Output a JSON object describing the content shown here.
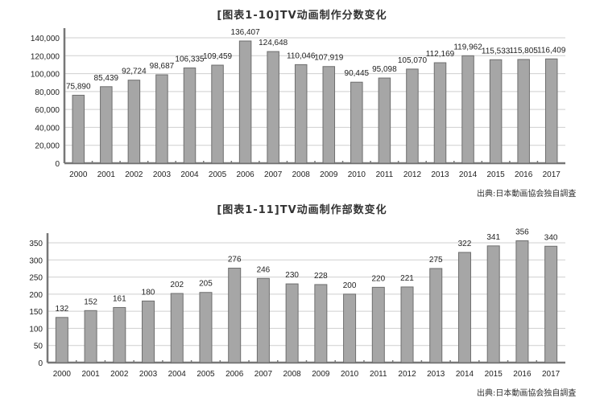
{
  "chart_data": [
    {
      "type": "bar",
      "title": "[图表1-10]TV动画制作分数变化",
      "source": "出典:日本動画協会独自調査",
      "xlabel": "",
      "ylabel": "",
      "categories": [
        "2000",
        "2001",
        "2002",
        "2003",
        "2004",
        "2005",
        "2006",
        "2007",
        "2008",
        "2009",
        "2010",
        "2011",
        "2012",
        "2013",
        "2014",
        "2015",
        "2016",
        "2017"
      ],
      "values": [
        75890,
        85439,
        92724,
        98687,
        106335,
        109459,
        136407,
        124648,
        110046,
        107919,
        90445,
        95098,
        105070,
        112169,
        119962,
        115533,
        115805,
        116409
      ],
      "value_labels": [
        "75,890",
        "85,439",
        "92,724",
        "98,687",
        "106,335",
        "109,459",
        "136,407",
        "124,648",
        "110,046",
        "107,919",
        "90,445",
        "95,098",
        "105,070",
        "112,169",
        "119,962",
        "115,533",
        "115,805",
        "116,409"
      ],
      "yticks": [
        "0",
        "20,000",
        "40,000",
        "60,000",
        "80,000",
        "100,000",
        "120,000",
        "140,000"
      ],
      "ylim": [
        0,
        140000
      ],
      "grid": true,
      "bar_color": "#a6a6a6"
    },
    {
      "type": "bar",
      "title": "[图表1-11]TV动画制作部数变化",
      "source": "出典:日本動画協会独自調査",
      "xlabel": "",
      "ylabel": "",
      "categories": [
        "2000",
        "2001",
        "2002",
        "2003",
        "2004",
        "2005",
        "2006",
        "2007",
        "2008",
        "2009",
        "2010",
        "2011",
        "2012",
        "2013",
        "2014",
        "2015",
        "2016",
        "2017"
      ],
      "values": [
        132,
        152,
        161,
        180,
        202,
        205,
        276,
        246,
        230,
        228,
        200,
        220,
        221,
        275,
        322,
        341,
        356,
        340
      ],
      "value_labels": [
        "132",
        "152",
        "161",
        "180",
        "202",
        "205",
        "276",
        "246",
        "230",
        "228",
        "200",
        "220",
        "221",
        "275",
        "322",
        "341",
        "356",
        "340"
      ],
      "yticks": [
        "0",
        "50",
        "100",
        "150",
        "200",
        "250",
        "300",
        "350"
      ],
      "ylim": [
        0,
        350
      ],
      "grid": true,
      "bar_color": "#a6a6a6"
    }
  ]
}
